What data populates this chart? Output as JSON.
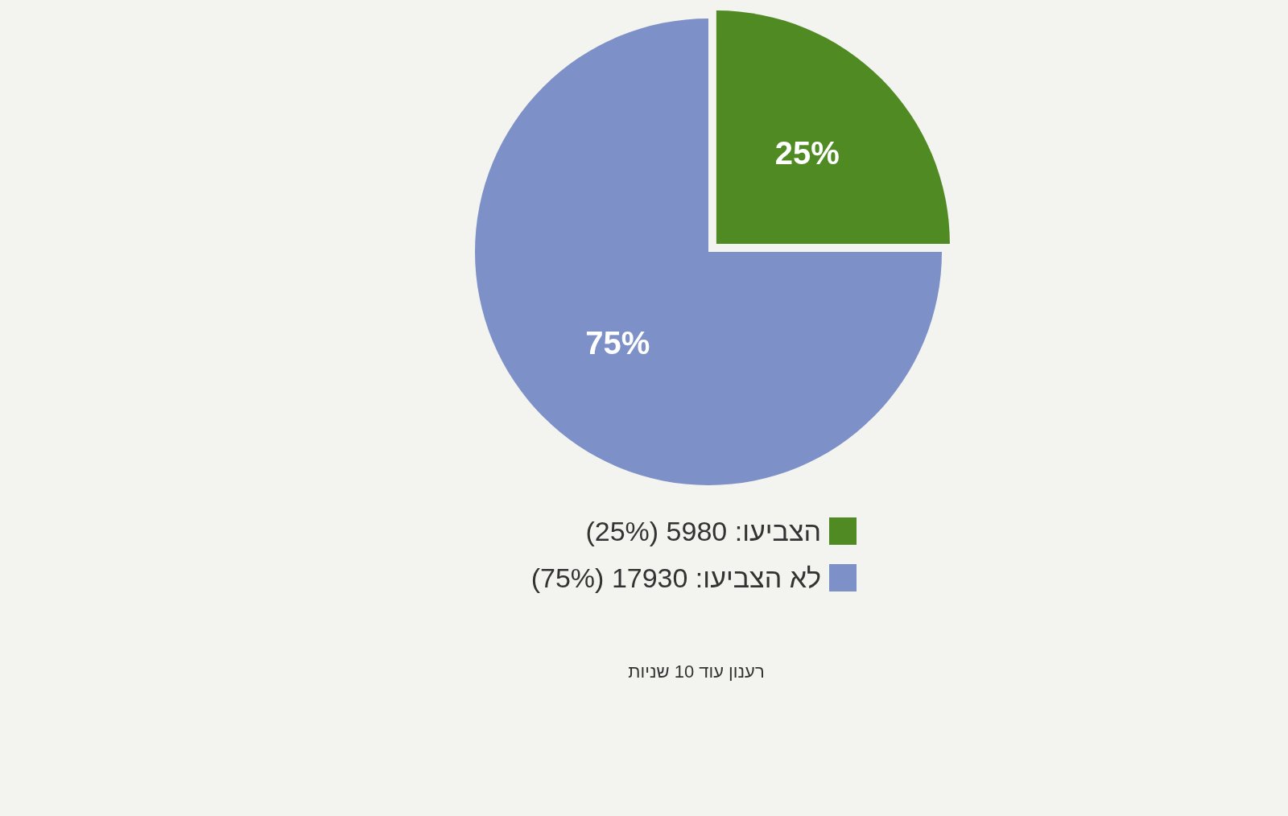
{
  "chart_data": {
    "type": "pie",
    "categories": [
      "הצביעו: 5980 (25%)",
      "לא הצביעו: 17930 (75%)"
    ],
    "values": [
      25,
      75
    ],
    "colors": [
      "#4f8a22",
      "#7d90c8"
    ],
    "value_labels": [
      "25%",
      "75%"
    ],
    "legend": "bottom",
    "annotations": [
      "רענון עוד 10 שניות"
    ]
  }
}
